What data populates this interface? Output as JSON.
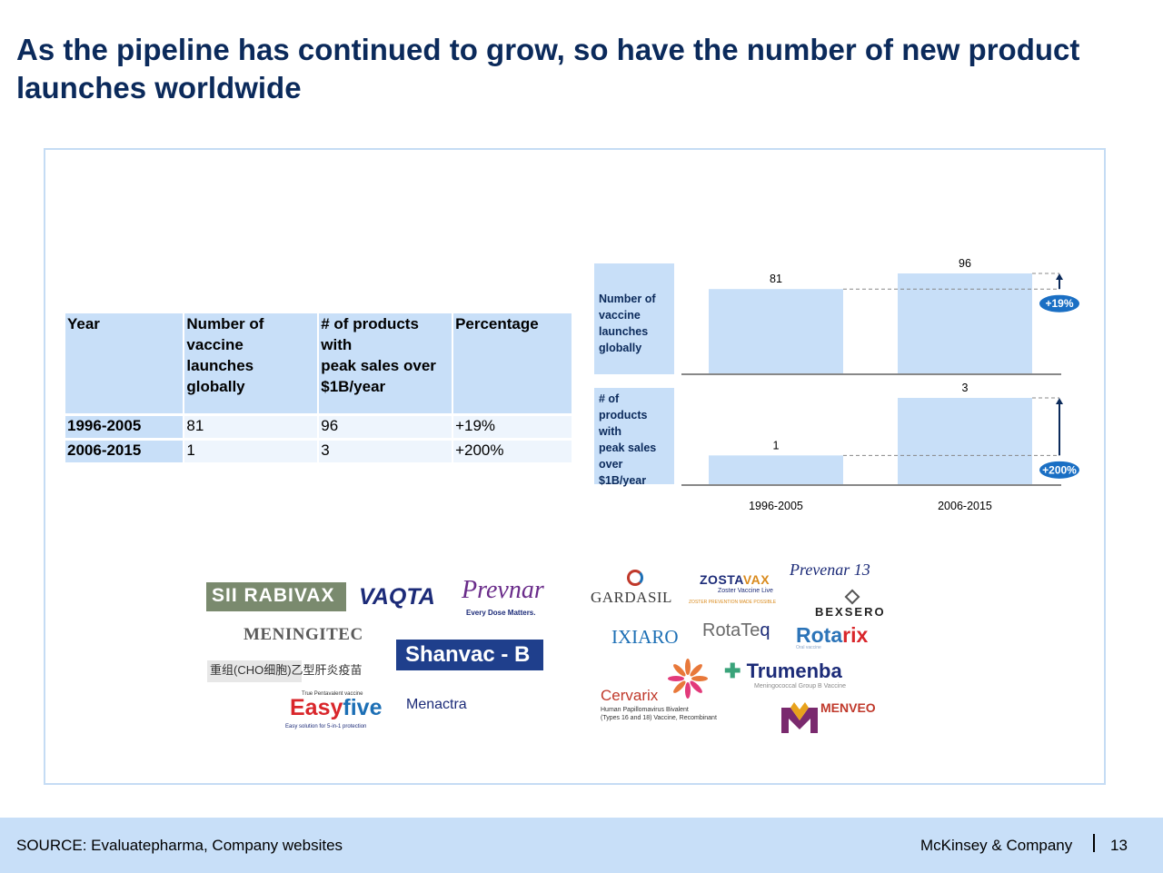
{
  "title": "As the pipeline has continued to grow, so have the number of new product launches worldwide",
  "table": {
    "headers": [
      "Year",
      "Number of vaccine launches globally",
      "# of products with peak sales over $1B/year",
      "Percentage"
    ],
    "header_lines": [
      [
        "Year"
      ],
      [
        "Number of",
        "vaccine",
        "launches",
        "globally"
      ],
      [
        "# of products",
        "with",
        "peak sales over",
        "$1B/year"
      ],
      [
        "Percentage"
      ]
    ],
    "rows": [
      [
        "1996-2005",
        "81",
        "96",
        "+19%"
      ],
      [
        "2006-2015",
        "1",
        "3",
        "+200%"
      ]
    ]
  },
  "chart_data": {
    "type": "bar",
    "categories": [
      "1996-2005",
      "2006-2015"
    ],
    "series": [
      {
        "name": "Number of vaccine launches globally",
        "label_lines": [
          "Number of",
          "vaccine",
          "launches",
          "globally"
        ],
        "values": [
          81,
          96
        ],
        "change": "+19%"
      },
      {
        "name": "# of products with peak sales over $1B/year",
        "label_lines": [
          "# of products",
          "with",
          "peak sales",
          "over",
          "$1B/year"
        ],
        "values": [
          1,
          3
        ],
        "change": "+200%"
      }
    ],
    "grid": false,
    "colors": {
      "bar": "#c8dff8",
      "badge": "#1a6fc4",
      "arrow": "#0b2a5b",
      "axis": "#888888"
    }
  },
  "logos": {
    "sii": "SII RABIVAX",
    "vaqta": "VAQTA",
    "prevnar": "Prevnar",
    "prevnar_sub": "Every Dose Matters.",
    "meningitec": "MENINGITEC",
    "shanvac": "Shanvac - B",
    "cn": "重组(CHO细胞)乙型肝炎疫苗",
    "easy_tag": "True Pentavalent vaccine",
    "easy_main": "Easy",
    "easy_five": "five",
    "easy_sub": "Easy solution for 5-in-1 protection",
    "menactra": "Menactra",
    "gardasil": "GARDASIL",
    "zosta": "ZOSTA",
    "zosta_x": "VAX",
    "zostavax_sub": "Zoster Vaccine Live",
    "zostavax_sub2": "ZOSTER PREVENTION MADE POSSIBLE",
    "prevnar13": "Prevenar 13",
    "bexsero": "BEXSERO",
    "ixiaro": "IXIARO",
    "rotateq_main": "RotaTe",
    "rotateq_q": "q",
    "rotarix_main": "Rota",
    "rotarix_ri": "rix",
    "rotarix_sub": "Oral vaccine",
    "cervarix": "Cervarix",
    "cervarix_sub1": "Human Papillomavirus Bivalent",
    "cervarix_sub2": "(Types 16 and 18) Vaccine, Recombinant",
    "trumenba": "Trumenba",
    "trumenba_sub": "Meningococcal Group B Vaccine",
    "menveo": "MENVEO"
  },
  "footer": {
    "source": "SOURCE: Evaluatepharma, Company websites",
    "company": "McKinsey & Company",
    "page": "13"
  },
  "colors": {
    "title": "#0b2a5b",
    "footer_bg": "#c8dff8",
    "frame": "#c5dcf4",
    "header_fill": "#c8dff8"
  }
}
